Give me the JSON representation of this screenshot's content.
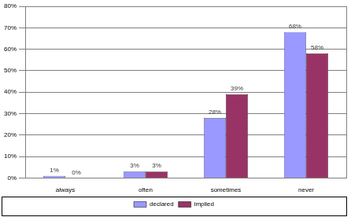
{
  "chart_data": {
    "type": "bar",
    "categories": [
      "always",
      "often",
      "sometimes",
      "never"
    ],
    "series": [
      {
        "name": "declared",
        "color": "#9999ff",
        "values": [
          1,
          3,
          28,
          68
        ],
        "value_labels": [
          "1%",
          "3%",
          "28%",
          "68%"
        ]
      },
      {
        "name": "implied",
        "color": "#993366",
        "values": [
          0,
          3,
          39,
          58
        ],
        "value_labels": [
          "0%",
          "3%",
          "39%",
          "58%"
        ]
      }
    ],
    "ylim": [
      0,
      80
    ],
    "yticks": [
      {
        "value": 0,
        "label": "0%"
      },
      {
        "value": 10,
        "label": "10%"
      },
      {
        "value": 20,
        "label": "20%"
      },
      {
        "value": 30,
        "label": "30%"
      },
      {
        "value": 40,
        "label": "40%"
      },
      {
        "value": 50,
        "label": "50%"
      },
      {
        "value": 60,
        "label": "60%"
      },
      {
        "value": 70,
        "label": "70%"
      },
      {
        "value": 80,
        "label": "80%"
      }
    ],
    "grid": true,
    "legend": "bottom",
    "data_labels": true
  }
}
